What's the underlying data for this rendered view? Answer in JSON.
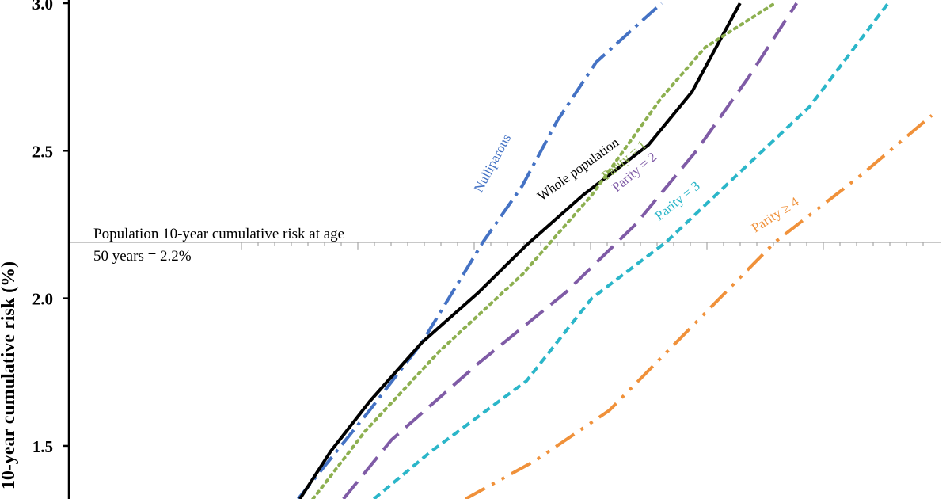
{
  "chart_data": {
    "type": "line",
    "ylabel": "10-year cumulative risk (%)",
    "ylim": [
      1.32,
      3.0
    ],
    "y_ticks": [
      "1.5",
      "2.0",
      "2.5",
      "3.0"
    ],
    "reference_line": {
      "value": 2.19,
      "label_line1": "Population 10-year cumulative risk at age",
      "label_line2": "50 years = 2.2%"
    },
    "series": [
      {
        "name": "Nulliparous",
        "color": "#4472C4",
        "points": [
          [
            0.263,
            1.32
          ],
          [
            0.345,
            1.62
          ],
          [
            0.405,
            1.85
          ],
          [
            0.475,
            2.19
          ],
          [
            0.52,
            2.38
          ],
          [
            0.56,
            2.6
          ],
          [
            0.605,
            2.8
          ],
          [
            0.68,
            3.0
          ]
        ]
      },
      {
        "name": "Whole population",
        "color": "#000000",
        "points": [
          [
            0.265,
            1.32
          ],
          [
            0.3,
            1.48
          ],
          [
            0.345,
            1.65
          ],
          [
            0.405,
            1.85
          ],
          [
            0.47,
            2.02
          ],
          [
            0.525,
            2.18
          ],
          [
            0.59,
            2.35
          ],
          [
            0.665,
            2.52
          ],
          [
            0.715,
            2.7
          ],
          [
            0.77,
            3.0
          ]
        ]
      },
      {
        "name": "Parity = 1",
        "color": "#8DB050",
        "points": [
          [
            0.28,
            1.32
          ],
          [
            0.34,
            1.55
          ],
          [
            0.425,
            1.82
          ],
          [
            0.52,
            2.08
          ],
          [
            0.6,
            2.35
          ],
          [
            0.68,
            2.68
          ],
          [
            0.73,
            2.85
          ],
          [
            0.81,
            3.0
          ]
        ]
      },
      {
        "name": "Parity = 2",
        "color": "#7F5BA6",
        "points": [
          [
            0.315,
            1.32
          ],
          [
            0.37,
            1.52
          ],
          [
            0.47,
            1.78
          ],
          [
            0.57,
            2.02
          ],
          [
            0.65,
            2.25
          ],
          [
            0.72,
            2.5
          ],
          [
            0.78,
            2.75
          ],
          [
            0.835,
            3.0
          ]
        ]
      },
      {
        "name": "Parity = 3",
        "color": "#2BB6C9",
        "points": [
          [
            0.35,
            1.32
          ],
          [
            0.415,
            1.48
          ],
          [
            0.525,
            1.72
          ],
          [
            0.6,
            2.0
          ],
          [
            0.685,
            2.19
          ],
          [
            0.76,
            2.4
          ],
          [
            0.85,
            2.65
          ],
          [
            0.94,
            3.0
          ]
        ]
      },
      {
        "name": "Parity ≥ 4",
        "color": "#F0913A",
        "points": [
          [
            0.455,
            1.32
          ],
          [
            0.535,
            1.45
          ],
          [
            0.62,
            1.62
          ],
          [
            0.7,
            1.86
          ],
          [
            0.81,
            2.19
          ],
          [
            0.91,
            2.42
          ],
          [
            0.99,
            2.62
          ]
        ]
      }
    ]
  }
}
